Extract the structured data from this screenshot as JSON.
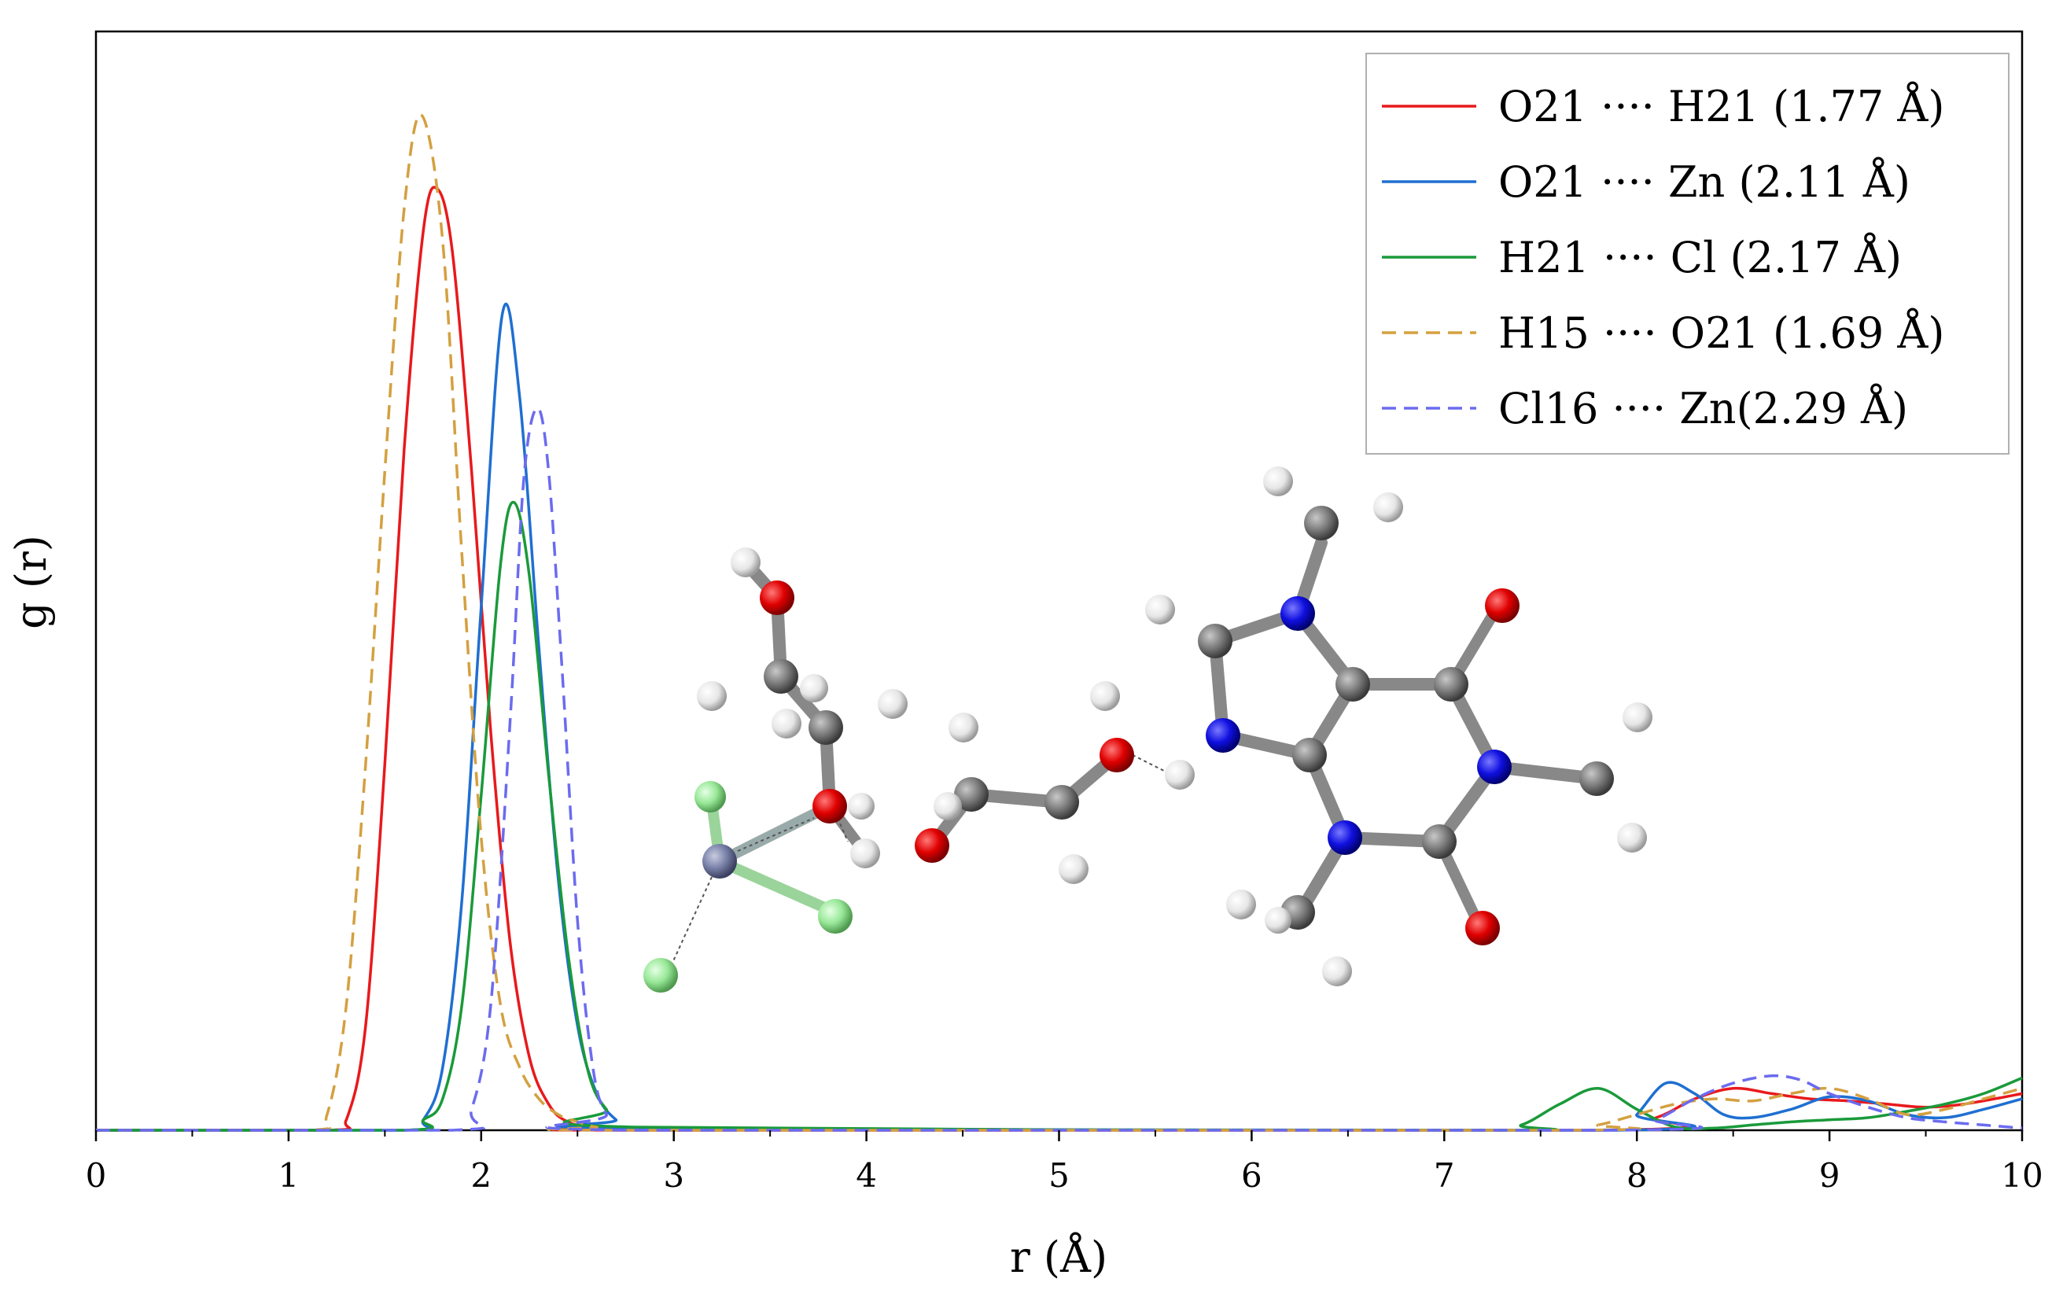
{
  "chart_data": {
    "type": "line",
    "title": "",
    "xlabel": "r (Å)",
    "ylabel": "g (r)",
    "xlim": [
      0,
      10
    ],
    "ylim": [
      0,
      10.5
    ],
    "x_ticks": [
      0,
      1,
      2,
      3,
      4,
      5,
      6,
      7,
      8,
      9,
      10
    ],
    "x_tick_labels": [
      "0",
      "1",
      "2",
      "3",
      "4",
      "5",
      "6",
      "7",
      "8",
      "9",
      "10"
    ],
    "y_ticks_shown": false,
    "grid": false,
    "legend_position": "top-right",
    "series": [
      {
        "name": "O21 ···· H21 (1.77 Å)",
        "color": "#e8191c",
        "dash": "solid",
        "x": [
          0,
          1.2,
          1.3,
          1.4,
          1.5,
          1.6,
          1.7,
          1.77,
          1.85,
          1.95,
          2.05,
          2.15,
          2.25,
          2.35,
          2.45,
          2.6,
          2.8,
          7.8,
          8.1,
          8.3,
          8.5,
          8.7,
          8.9,
          9.1,
          9.3,
          9.5,
          9.7,
          10
        ],
        "y": [
          0,
          0,
          0.1,
          1.0,
          3.5,
          6.5,
          8.6,
          9.0,
          8.4,
          6.3,
          3.8,
          1.8,
          0.7,
          0.25,
          0.08,
          0.02,
          0,
          0,
          0.12,
          0.3,
          0.4,
          0.35,
          0.3,
          0.28,
          0.25,
          0.22,
          0.25,
          0.35
        ]
      },
      {
        "name": "O21 ···· Zn (2.11 Å)",
        "color": "#1f6fd1",
        "dash": "solid",
        "x": [
          0,
          1.6,
          1.7,
          1.8,
          1.9,
          2.0,
          2.11,
          2.2,
          2.3,
          2.4,
          2.5,
          2.6,
          2.7,
          2.8,
          7.9,
          8.0,
          8.15,
          8.3,
          8.45,
          8.6,
          8.8,
          9.0,
          9.2,
          9.4,
          9.6,
          9.8,
          10
        ],
        "y": [
          0,
          0,
          0.1,
          0.6,
          2.2,
          5.0,
          7.8,
          7.0,
          4.6,
          2.4,
          1.0,
          0.35,
          0.1,
          0.02,
          0,
          0.15,
          0.45,
          0.35,
          0.15,
          0.12,
          0.2,
          0.32,
          0.28,
          0.15,
          0.12,
          0.2,
          0.3
        ]
      },
      {
        "name": "H21 ···· Cl (2.17 Å)",
        "color": "#1a9a3a",
        "dash": "solid",
        "x": [
          0,
          1.6,
          1.7,
          1.8,
          1.9,
          2.0,
          2.1,
          2.17,
          2.25,
          2.35,
          2.45,
          2.55,
          2.65,
          2.8,
          7.2,
          7.4,
          7.6,
          7.8,
          8.0,
          8.2,
          8.4,
          8.6,
          8.8,
          9.0,
          9.2,
          9.4,
          9.6,
          9.8,
          10
        ],
        "y": [
          0,
          0,
          0.1,
          0.3,
          1.2,
          3.2,
          5.4,
          6.0,
          5.3,
          3.4,
          1.7,
          0.6,
          0.2,
          0.03,
          0,
          0.05,
          0.25,
          0.4,
          0.2,
          0.03,
          0.02,
          0.05,
          0.08,
          0.1,
          0.12,
          0.18,
          0.25,
          0.35,
          0.5
        ]
      },
      {
        "name": "H15 ···· O21 (1.69 Å)",
        "color": "#d4a040",
        "dash": "dashed",
        "x": [
          0,
          1.1,
          1.2,
          1.3,
          1.4,
          1.5,
          1.6,
          1.69,
          1.8,
          1.9,
          2.0,
          2.1,
          2.2,
          2.3,
          2.4,
          2.5,
          2.6,
          2.75,
          7.6,
          7.8,
          8.0,
          8.2,
          8.4,
          8.6,
          8.8,
          9.0,
          9.2,
          9.4,
          9.6,
          9.8,
          10
        ],
        "y": [
          0,
          0,
          0.15,
          1.2,
          3.5,
          6.3,
          8.8,
          9.7,
          8.5,
          5.5,
          2.8,
          1.2,
          0.6,
          0.3,
          0.15,
          0.08,
          0.03,
          0,
          0,
          0.05,
          0.15,
          0.25,
          0.3,
          0.28,
          0.35,
          0.4,
          0.3,
          0.15,
          0.2,
          0.3,
          0.4
        ]
      },
      {
        "name": "Cl16 ···· Zn(2.29 Å)",
        "color": "#6b6bef",
        "dash": "dashed",
        "x": [
          0,
          1.85,
          1.95,
          2.05,
          2.15,
          2.22,
          2.29,
          2.35,
          2.42,
          2.5,
          2.58,
          2.65,
          2.75,
          7.9,
          8.1,
          8.3,
          8.5,
          8.7,
          8.85,
          9.0,
          9.2,
          9.4,
          9.6,
          9.8,
          10
        ],
        "y": [
          0,
          0,
          0.2,
          1.2,
          3.9,
          6.2,
          6.9,
          6.3,
          4.4,
          2.0,
          0.6,
          0.15,
          0,
          0,
          0.1,
          0.3,
          0.45,
          0.52,
          0.48,
          0.35,
          0.22,
          0.12,
          0.08,
          0.05,
          0.02
        ]
      }
    ]
  }
}
